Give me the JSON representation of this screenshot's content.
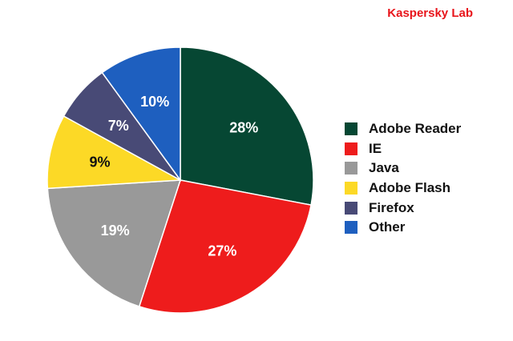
{
  "watermark": "Kaspersky Lab",
  "chart_data": {
    "type": "pie",
    "title": "",
    "categories": [
      "Adobe Reader",
      "IE",
      "Java",
      "Adobe Flash",
      "Firefox",
      "Other"
    ],
    "values": [
      28,
      27,
      19,
      9,
      7,
      10
    ],
    "value_labels": [
      "28%",
      "27%",
      "19%",
      "9%",
      "7%",
      "10%"
    ],
    "colors": [
      "#064733",
      "#ee1c1c",
      "#999999",
      "#fcd926",
      "#484a76",
      "#1e5fbf"
    ],
    "label_colors": [
      "#ffffff",
      "#ffffff",
      "#ffffff",
      "#111111",
      "#ffffff",
      "#ffffff"
    ],
    "start": "12 o'clock",
    "direction": "clockwise",
    "legend_position": "right"
  }
}
